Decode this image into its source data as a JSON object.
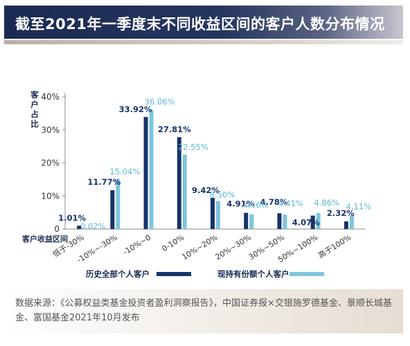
{
  "header": {
    "title": "截至2021年一季度末不同收益区间的客户人数分布情况"
  },
  "chart_data": {
    "type": "bar",
    "ylabel": "客户占比",
    "xlabel": "客户收益区间",
    "ylim": [
      0,
      40
    ],
    "y_ticks": [
      "0",
      "10%",
      "20%",
      "30%",
      "40%"
    ],
    "categories": [
      "低于-30%",
      "-10%~-30%",
      "-10%~0",
      "0-10%",
      "10%~20%",
      "20%~30%",
      "30%~50%",
      "50%~100%",
      "高于100%"
    ],
    "series": [
      {
        "name": "历史全部个人客户",
        "color": "#17336b",
        "values": [
          1.01,
          11.77,
          33.92,
          27.81,
          9.42,
          4.91,
          4.78,
          4.07,
          2.32
        ],
        "labels": [
          "1.01%",
          "11.77%",
          "33.92%",
          "27.81%",
          "9.42%",
          "4.91%",
          "4.78%",
          "4.07%",
          "2.32%"
        ]
      },
      {
        "name": "现持有份额个人客户",
        "color": "#7ec6dd",
        "values": [
          0.02,
          15.04,
          36.06,
          22.55,
          8.5,
          4.46,
          4.41,
          4.86,
          4.11
        ],
        "labels": [
          "0.02%",
          "15.04%",
          "36.06%",
          "22.55%",
          "8.50%",
          "4.46%",
          "4.41%",
          "4.86%",
          "4.11%"
        ]
      }
    ],
    "legend_position": "bottom"
  },
  "footer": {
    "source": "数据来源：《公募权益类基金投资者盈利洞察报告》，中国证券报×交银施罗德基金、景顺长城基金、富国基金2021年10月发布"
  }
}
